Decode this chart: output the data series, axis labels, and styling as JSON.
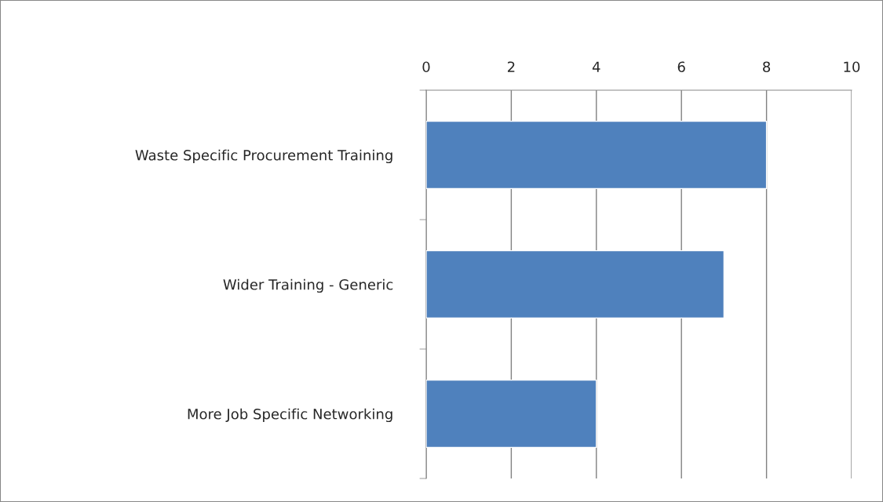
{
  "chart_data": {
    "type": "bar",
    "orientation": "horizontal",
    "categories": [
      "Waste Specific Procurement Training",
      "Wider Training - Generic",
      "More Job Specific Networking"
    ],
    "values": [
      8,
      7,
      4
    ],
    "color": "#4f81bd",
    "xlim": [
      0,
      10
    ],
    "xticks": [
      0,
      2,
      4,
      6,
      8,
      10
    ],
    "grid": "x",
    "legend": false
  }
}
